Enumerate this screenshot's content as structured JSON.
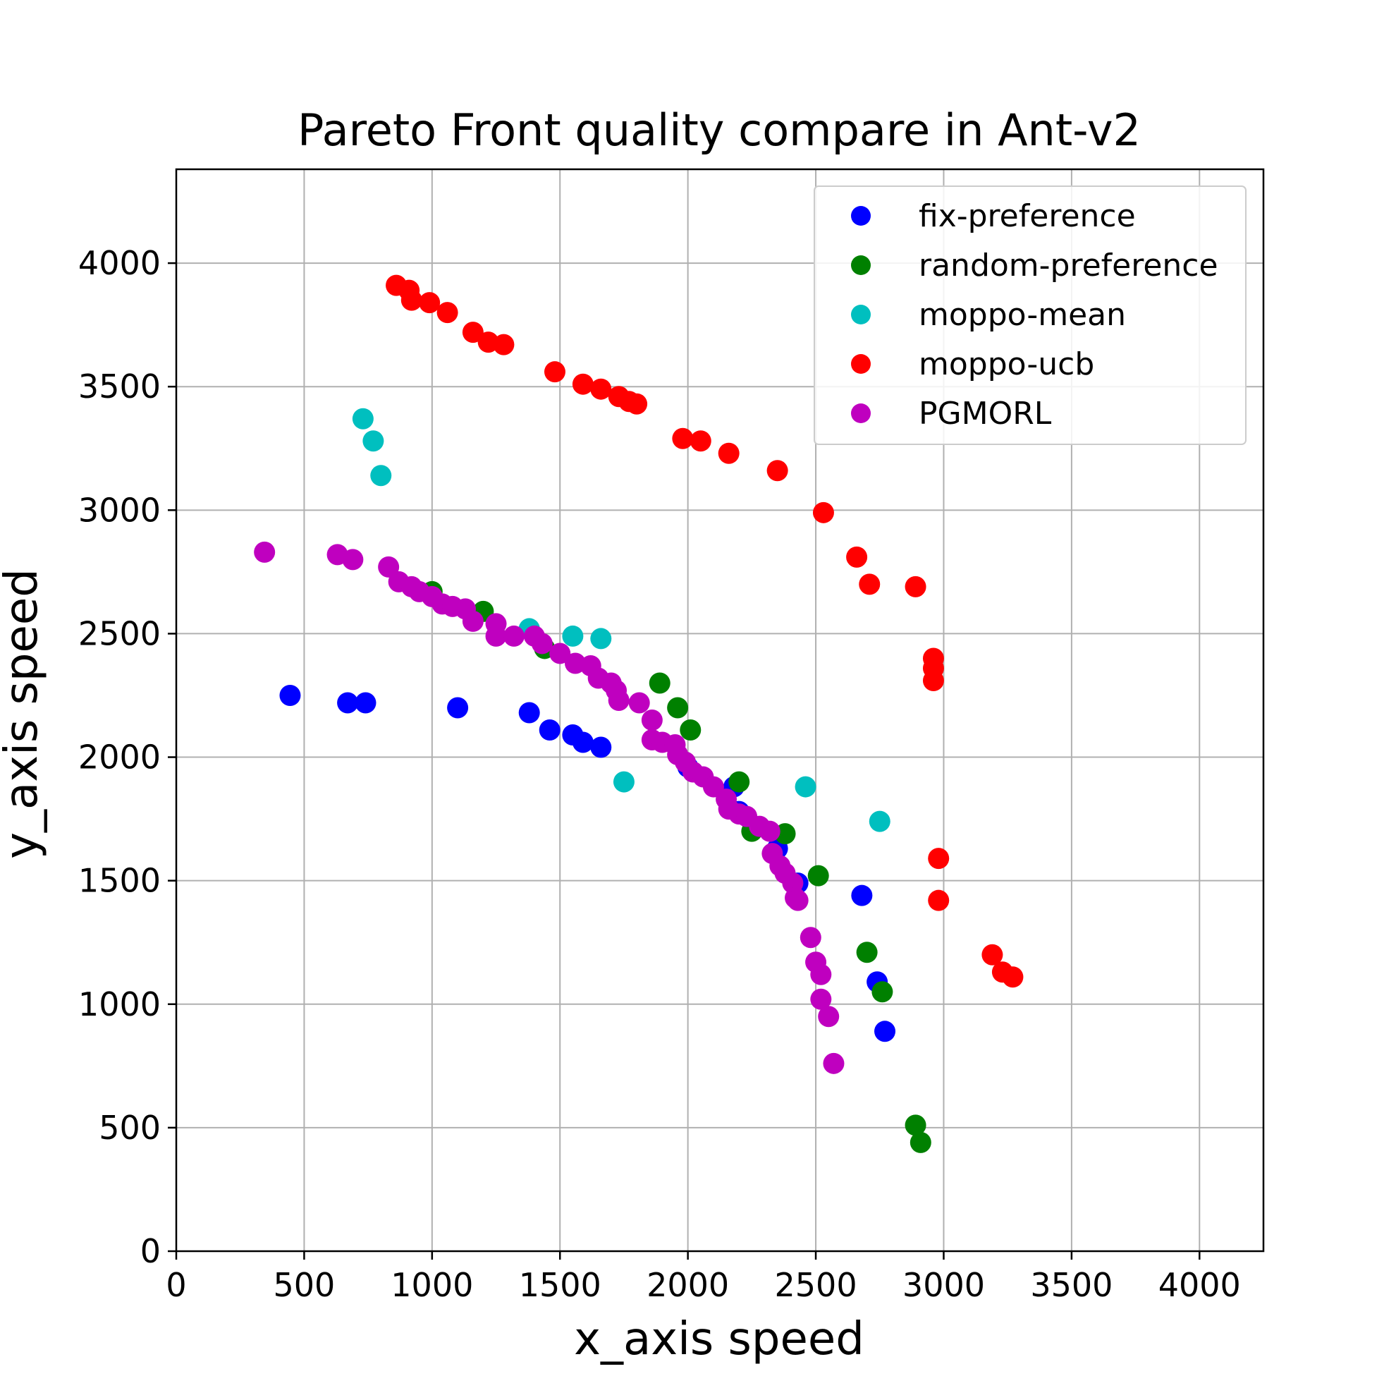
{
  "chart_data": {
    "type": "scatter",
    "title": "Pareto Front quality compare in Ant-v2",
    "xlabel": "x_axis speed",
    "ylabel": "y_axis speed",
    "xlim": [
      0,
      4250
    ],
    "ylim": [
      0,
      4380
    ],
    "xticks": [
      0,
      500,
      1000,
      1500,
      2000,
      2500,
      3000,
      3500,
      4000
    ],
    "yticks": [
      0,
      500,
      1000,
      1500,
      2000,
      2500,
      3000,
      3500,
      4000
    ],
    "xtick_labels": [
      "0",
      "500",
      "1000",
      "1500",
      "2000",
      "2500",
      "3000",
      "3500",
      "4000"
    ],
    "ytick_labels": [
      "0",
      "500",
      "1000",
      "1500",
      "2000",
      "2500",
      "3000",
      "3500",
      "4000"
    ],
    "grid": true,
    "legend_position": "top-right",
    "series": [
      {
        "name": "fix-preference",
        "color": "#0000ff",
        "points": [
          [
            445,
            2250
          ],
          [
            670,
            2220
          ],
          [
            740,
            2220
          ],
          [
            1100,
            2200
          ],
          [
            1380,
            2180
          ],
          [
            1460,
            2110
          ],
          [
            1550,
            2090
          ],
          [
            1590,
            2060
          ],
          [
            1660,
            2040
          ],
          [
            2000,
            1960
          ],
          [
            2180,
            1880
          ],
          [
            2200,
            1780
          ],
          [
            2350,
            1630
          ],
          [
            2430,
            1490
          ],
          [
            2680,
            1440
          ],
          [
            2740,
            1090
          ],
          [
            2770,
            890
          ]
        ]
      },
      {
        "name": "random-preference",
        "color": "#008000",
        "points": [
          [
            1000,
            2670
          ],
          [
            1200,
            2590
          ],
          [
            1440,
            2440
          ],
          [
            1890,
            2300
          ],
          [
            1960,
            2200
          ],
          [
            2010,
            2110
          ],
          [
            2200,
            1900
          ],
          [
            2250,
            1700
          ],
          [
            2380,
            1690
          ],
          [
            2510,
            1520
          ],
          [
            2700,
            1210
          ],
          [
            2760,
            1050
          ],
          [
            2890,
            510
          ],
          [
            2910,
            440
          ]
        ]
      },
      {
        "name": "moppo-mean",
        "color": "#00bfbf",
        "points": [
          [
            730,
            3370
          ],
          [
            770,
            3280
          ],
          [
            800,
            3140
          ],
          [
            1380,
            2520
          ],
          [
            1550,
            2490
          ],
          [
            1660,
            2480
          ],
          [
            1750,
            1900
          ],
          [
            2460,
            1880
          ],
          [
            2750,
            1740
          ]
        ]
      },
      {
        "name": "moppo-ucb",
        "color": "#ff0000",
        "points": [
          [
            860,
            3910
          ],
          [
            910,
            3890
          ],
          [
            920,
            3850
          ],
          [
            990,
            3840
          ],
          [
            1060,
            3800
          ],
          [
            1160,
            3720
          ],
          [
            1220,
            3680
          ],
          [
            1280,
            3670
          ],
          [
            1480,
            3560
          ],
          [
            1590,
            3510
          ],
          [
            1660,
            3490
          ],
          [
            1730,
            3460
          ],
          [
            1770,
            3440
          ],
          [
            1800,
            3430
          ],
          [
            1980,
            3290
          ],
          [
            2050,
            3280
          ],
          [
            2160,
            3230
          ],
          [
            2350,
            3160
          ],
          [
            2530,
            2990
          ],
          [
            2660,
            2810
          ],
          [
            2710,
            2700
          ],
          [
            2890,
            2690
          ],
          [
            2960,
            2400
          ],
          [
            2960,
            2360
          ],
          [
            2960,
            2310
          ],
          [
            2980,
            1590
          ],
          [
            2980,
            1420
          ],
          [
            3190,
            1200
          ],
          [
            3230,
            1130
          ],
          [
            3270,
            1110
          ]
        ]
      },
      {
        "name": "PGMORL",
        "color": "#bf00bf",
        "points": [
          [
            345,
            2830
          ],
          [
            630,
            2820
          ],
          [
            690,
            2800
          ],
          [
            830,
            2770
          ],
          [
            870,
            2710
          ],
          [
            920,
            2690
          ],
          [
            950,
            2670
          ],
          [
            1000,
            2650
          ],
          [
            1040,
            2620
          ],
          [
            1080,
            2610
          ],
          [
            1130,
            2600
          ],
          [
            1160,
            2550
          ],
          [
            1250,
            2540
          ],
          [
            1250,
            2490
          ],
          [
            1320,
            2490
          ],
          [
            1400,
            2490
          ],
          [
            1430,
            2460
          ],
          [
            1500,
            2420
          ],
          [
            1560,
            2380
          ],
          [
            1620,
            2370
          ],
          [
            1650,
            2320
          ],
          [
            1700,
            2300
          ],
          [
            1720,
            2270
          ],
          [
            1730,
            2230
          ],
          [
            1810,
            2220
          ],
          [
            1860,
            2150
          ],
          [
            1860,
            2070
          ],
          [
            1900,
            2060
          ],
          [
            1950,
            2050
          ],
          [
            1960,
            2010
          ],
          [
            1990,
            1980
          ],
          [
            2020,
            1940
          ],
          [
            2060,
            1920
          ],
          [
            2100,
            1880
          ],
          [
            2150,
            1830
          ],
          [
            2160,
            1790
          ],
          [
            2200,
            1770
          ],
          [
            2230,
            1760
          ],
          [
            2280,
            1720
          ],
          [
            2320,
            1700
          ],
          [
            2330,
            1610
          ],
          [
            2360,
            1560
          ],
          [
            2380,
            1530
          ],
          [
            2410,
            1490
          ],
          [
            2420,
            1430
          ],
          [
            2430,
            1420
          ],
          [
            2480,
            1270
          ],
          [
            2500,
            1170
          ],
          [
            2520,
            1120
          ],
          [
            2520,
            1020
          ],
          [
            2550,
            950
          ],
          [
            2570,
            760
          ]
        ]
      }
    ]
  }
}
